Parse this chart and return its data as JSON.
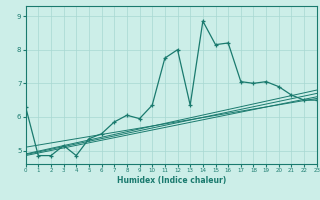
{
  "xlabel": "Humidex (Indice chaleur)",
  "bg_color": "#cceee8",
  "line_color": "#1a7a6e",
  "grid_color": "#a8d8d2",
  "xlim": [
    0,
    23
  ],
  "ylim": [
    4.6,
    9.3
  ],
  "yticks": [
    5,
    6,
    7,
    8,
    9
  ],
  "xticks": [
    0,
    1,
    2,
    3,
    4,
    5,
    6,
    7,
    8,
    9,
    10,
    11,
    12,
    13,
    14,
    15,
    16,
    17,
    18,
    19,
    20,
    21,
    22,
    23
  ],
  "main_line_x": [
    0,
    1,
    2,
    3,
    4,
    5,
    6,
    7,
    8,
    9,
    10,
    11,
    12,
    13,
    14,
    15,
    16,
    17,
    18,
    19,
    20,
    21,
    22,
    23
  ],
  "main_line_y": [
    6.3,
    4.85,
    4.85,
    5.15,
    4.85,
    5.35,
    5.5,
    5.85,
    6.05,
    5.95,
    6.35,
    7.75,
    8.0,
    6.35,
    8.85,
    8.15,
    8.2,
    7.05,
    7.0,
    7.05,
    6.9,
    6.65,
    6.5,
    6.5
  ],
  "trend_lines": [
    {
      "x": [
        0,
        23
      ],
      "y": [
        4.85,
        6.6
      ]
    },
    {
      "x": [
        0,
        23
      ],
      "y": [
        4.88,
        6.7
      ]
    },
    {
      "x": [
        0,
        23
      ],
      "y": [
        4.9,
        6.8
      ]
    },
    {
      "x": [
        0,
        23
      ],
      "y": [
        5.1,
        6.55
      ]
    }
  ]
}
